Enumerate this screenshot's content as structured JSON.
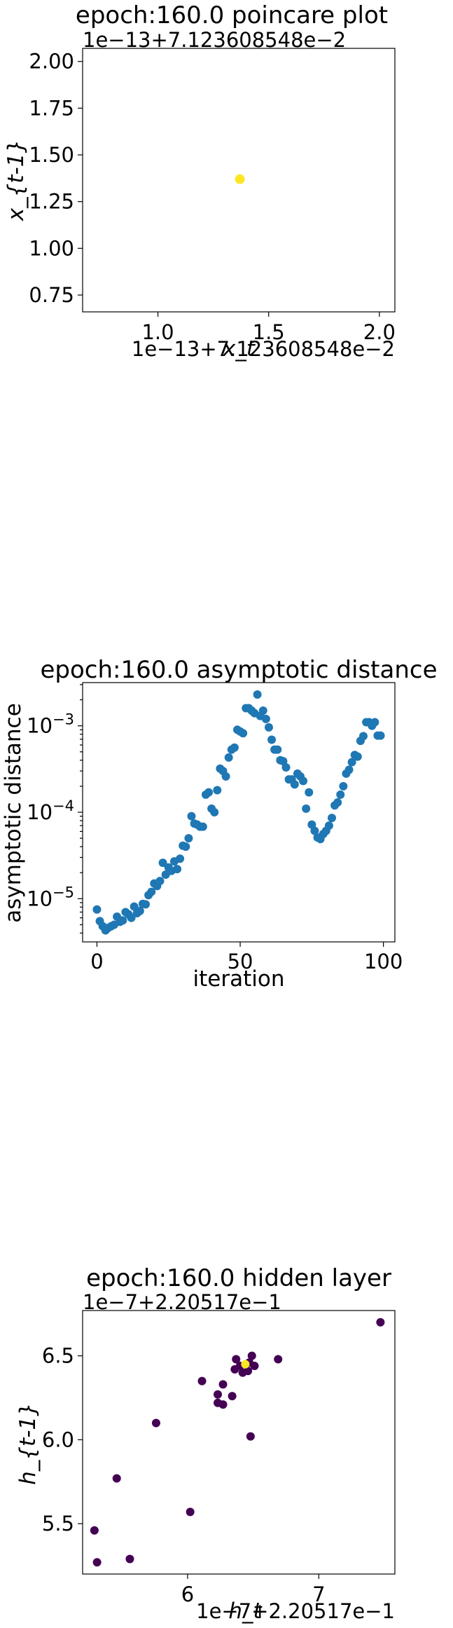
{
  "chart_data": [
    {
      "type": "scatter",
      "title": "epoch:160.0 poincare plot",
      "xlabel": "x_t",
      "ylabel": "x_{t-1}",
      "x_offset_text": "1e−13+7.123608548e−2",
      "y_offset_text": "1e−13+7.123608548e−2",
      "xlim": [
        0.66,
        2.07
      ],
      "ylim": [
        0.66,
        2.07
      ],
      "xticks": [
        "1.0",
        "1.5",
        "2.0"
      ],
      "yticks": [
        "0.75",
        "1.00",
        "1.25",
        "1.50",
        "1.75",
        "2.00"
      ],
      "points": [
        {
          "x": 1.37,
          "y": 1.37
        }
      ],
      "point_color": "#fde725"
    },
    {
      "type": "scatter",
      "title": "epoch:160.0 asymptotic distance",
      "xlabel": "iteration",
      "ylabel": "asymptotic distance",
      "y_scale": "log",
      "xlim": [
        -5,
        104
      ],
      "ylim_log10": [
        -5.5,
        -2.5
      ],
      "xticks": [
        "0",
        "50",
        "100"
      ],
      "yticks": [
        "10^-5",
        "10^-4",
        "10^-3"
      ],
      "point_color": "#1f77b4",
      "x": [
        0,
        1,
        2,
        3,
        4,
        5,
        6,
        7,
        8,
        9,
        10,
        11,
        12,
        13,
        14,
        15,
        16,
        17,
        18,
        19,
        20,
        21,
        22,
        23,
        24,
        25,
        26,
        27,
        28,
        29,
        30,
        31,
        32,
        33,
        34,
        35,
        36,
        37,
        38,
        39,
        40,
        41,
        42,
        43,
        44,
        45,
        46,
        47,
        48,
        49,
        50,
        51,
        52,
        53,
        54,
        55,
        56,
        57,
        58,
        59,
        60,
        61,
        62,
        63,
        64,
        65,
        66,
        67,
        68,
        69,
        70,
        71,
        72,
        73,
        74,
        75,
        76,
        77,
        78,
        79,
        80,
        81,
        82,
        83,
        84,
        85,
        86,
        87,
        88,
        89,
        90,
        91,
        92,
        93,
        94,
        95,
        96,
        97,
        98,
        99
      ],
      "y": [
        7.5e-06,
        5.5e-06,
        4.8e-06,
        4.3e-06,
        4.6e-06,
        4.8e-06,
        5e-06,
        6.2e-06,
        5.4e-06,
        5.6e-06,
        7e-06,
        6.6e-06,
        6e-06,
        8.1e-06,
        6.8e-06,
        7.2e-06,
        8.7e-06,
        8.6e-06,
        1.1e-05,
        1.2e-05,
        1.5e-05,
        1.4e-05,
        1.6e-05,
        2.6e-05,
        1.9e-05,
        2.3e-05,
        2.1e-05,
        2.7e-05,
        2.2e-05,
        2.9e-05,
        4.1e-05,
        4e-05,
        5e-05,
        9e-05,
        7.4e-05,
        7.2e-05,
        6.8e-05,
        6.8e-05,
        0.00016,
        0.00017,
        0.00011,
        0.0001,
        0.00018,
        0.00032,
        0.0003,
        0.00026,
        0.00043,
        0.00053,
        0.00056,
        0.0009,
        0.00086,
        0.00082,
        0.0016,
        0.0016,
        0.0015,
        0.0014,
        0.0023,
        0.0013,
        0.0015,
        0.0012,
        0.00096,
        0.00069,
        0.00053,
        0.00053,
        0.0004,
        0.00039,
        0.00033,
        0.00024,
        0.00024,
        0.00021,
        0.00028,
        0.00026,
        0.00023,
        0.00011,
        0.00017,
        7.2e-05,
        6.1e-05,
        5.1e-05,
        4.9e-05,
        5.6e-05,
        6.1e-05,
        7e-05,
        8.6e-05,
        0.00012,
        0.00013,
        0.00016,
        0.0002,
        0.00028,
        0.00031,
        0.00038,
        0.00046,
        0.00044,
        0.00067,
        0.00076,
        0.0011,
        0.0011,
        0.001,
        0.0011,
        0.00077,
        0.00077
      ]
    },
    {
      "type": "scatter",
      "title": "epoch:160.0 hidden layer",
      "xlabel": "h_t",
      "ylabel": "h_{t-1}",
      "x_offset_text": "1e−7+2.20517e−1",
      "y_offset_text": "1e−7+2.20517e−1",
      "xlim": [
        5.2,
        7.58
      ],
      "ylim": [
        5.2,
        6.77
      ],
      "xticks": [
        "6",
        "7"
      ],
      "yticks": [
        "5.5",
        "6.0",
        "6.5"
      ],
      "colormap": [
        "#440154",
        "#fde725"
      ],
      "points": [
        {
          "x": 5.29,
          "y": 5.46,
          "c": 0
        },
        {
          "x": 5.31,
          "y": 5.27,
          "c": 0
        },
        {
          "x": 5.46,
          "y": 5.77,
          "c": 0
        },
        {
          "x": 5.56,
          "y": 5.29,
          "c": 0
        },
        {
          "x": 5.76,
          "y": 6.1,
          "c": 0
        },
        {
          "x": 6.02,
          "y": 5.57,
          "c": 0
        },
        {
          "x": 6.11,
          "y": 6.35,
          "c": 0
        },
        {
          "x": 6.23,
          "y": 6.27,
          "c": 0
        },
        {
          "x": 6.23,
          "y": 6.22,
          "c": 0
        },
        {
          "x": 6.27,
          "y": 6.21,
          "c": 0
        },
        {
          "x": 6.27,
          "y": 6.33,
          "c": 0
        },
        {
          "x": 6.34,
          "y": 6.26,
          "c": 0
        },
        {
          "x": 6.36,
          "y": 6.42,
          "c": 0
        },
        {
          "x": 6.37,
          "y": 6.48,
          "c": 0
        },
        {
          "x": 6.4,
          "y": 6.44,
          "c": 0
        },
        {
          "x": 6.42,
          "y": 6.4,
          "c": 0
        },
        {
          "x": 6.46,
          "y": 6.41,
          "c": 0
        },
        {
          "x": 6.47,
          "y": 6.46,
          "c": 0
        },
        {
          "x": 6.48,
          "y": 6.02,
          "c": 0
        },
        {
          "x": 6.49,
          "y": 6.5,
          "c": 0
        },
        {
          "x": 6.51,
          "y": 6.44,
          "c": 0
        },
        {
          "x": 6.69,
          "y": 6.48,
          "c": 0
        },
        {
          "x": 7.47,
          "y": 6.7,
          "c": 0
        },
        {
          "x": 6.44,
          "y": 6.45,
          "c": 1
        }
      ]
    }
  ]
}
